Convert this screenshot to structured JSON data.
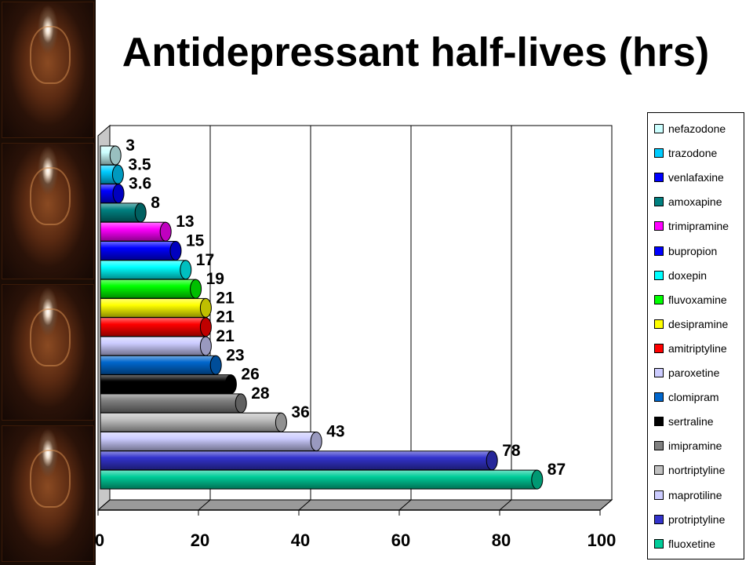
{
  "title": "Antidepressant half-lives (hrs)",
  "chart_data": {
    "type": "bar",
    "orientation": "horizontal",
    "categories": [
      "nefazodone",
      "trazodone",
      "venlafaxine",
      "amoxapine",
      "trimipramine",
      "bupropion",
      "doxepin",
      "fluvoxamine",
      "desipramine",
      "amitriptyline",
      "paroxetine",
      "clomipram",
      "sertraline",
      "imipramine",
      "nortriptyline",
      "maprotiline",
      "protriptyline",
      "fluoxetine"
    ],
    "values": [
      3,
      3.5,
      3.6,
      8,
      13,
      15,
      17,
      19,
      21,
      21,
      21,
      23,
      26,
      28,
      36,
      43,
      78,
      87
    ],
    "value_labels": [
      "3",
      "3.5",
      "3.6",
      "8",
      "13",
      "15",
      "17",
      "19",
      "21",
      "21",
      "21",
      "23",
      "26",
      "28",
      "36",
      "43",
      "78",
      "87"
    ],
    "colors": [
      "#ccffff",
      "#00ccff",
      "#0000ff",
      "#008080",
      "#ff00ff",
      "#0000ff",
      "#00ffff",
      "#00ff00",
      "#ffff00",
      "#ff0000",
      "#ccccff",
      "#0066cc",
      "#000000",
      "#808080",
      "#c0c0c0",
      "#ccccff",
      "#3333cc",
      "#00cc99"
    ],
    "x_ticks": [
      "0",
      "20",
      "40",
      "60",
      "80",
      "100"
    ],
    "xlim": [
      0,
      100
    ],
    "grid": "vertical",
    "three_d": true,
    "legend_position": "right"
  }
}
